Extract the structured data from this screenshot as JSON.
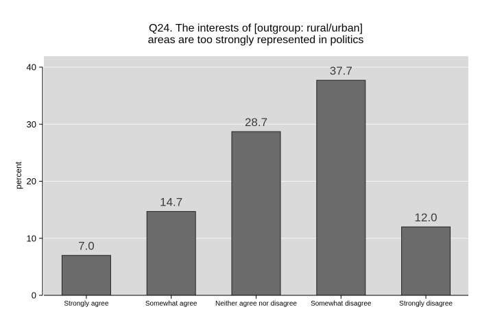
{
  "chart_data": {
    "type": "bar",
    "title": "Q24. The interests of [outgroup: rural/urban]",
    "subtitle": "areas are too strongly represented in politics",
    "xlabel": "",
    "ylabel": "percent",
    "categories": [
      "Strongly agree",
      "Somewhat agree",
      "Neither agree nor disagree",
      "Somewhat disagree",
      "Strongly disagree"
    ],
    "values": [
      7.0,
      14.7,
      28.7,
      37.7,
      12.0
    ],
    "data_labels": [
      "7.0",
      "14.7",
      "28.7",
      "37.7",
      "12.0"
    ],
    "ylim": [
      0,
      40
    ],
    "yticks": [
      0,
      10,
      20,
      30,
      40
    ],
    "grid": true,
    "legend": "none",
    "colors": {
      "bar_fill": "#6b6b6b",
      "bar_stroke": "#222222",
      "plot_background": "#dadada",
      "grid_line": "#f4f4f4",
      "data_label_text": "#3c3c3c"
    }
  }
}
